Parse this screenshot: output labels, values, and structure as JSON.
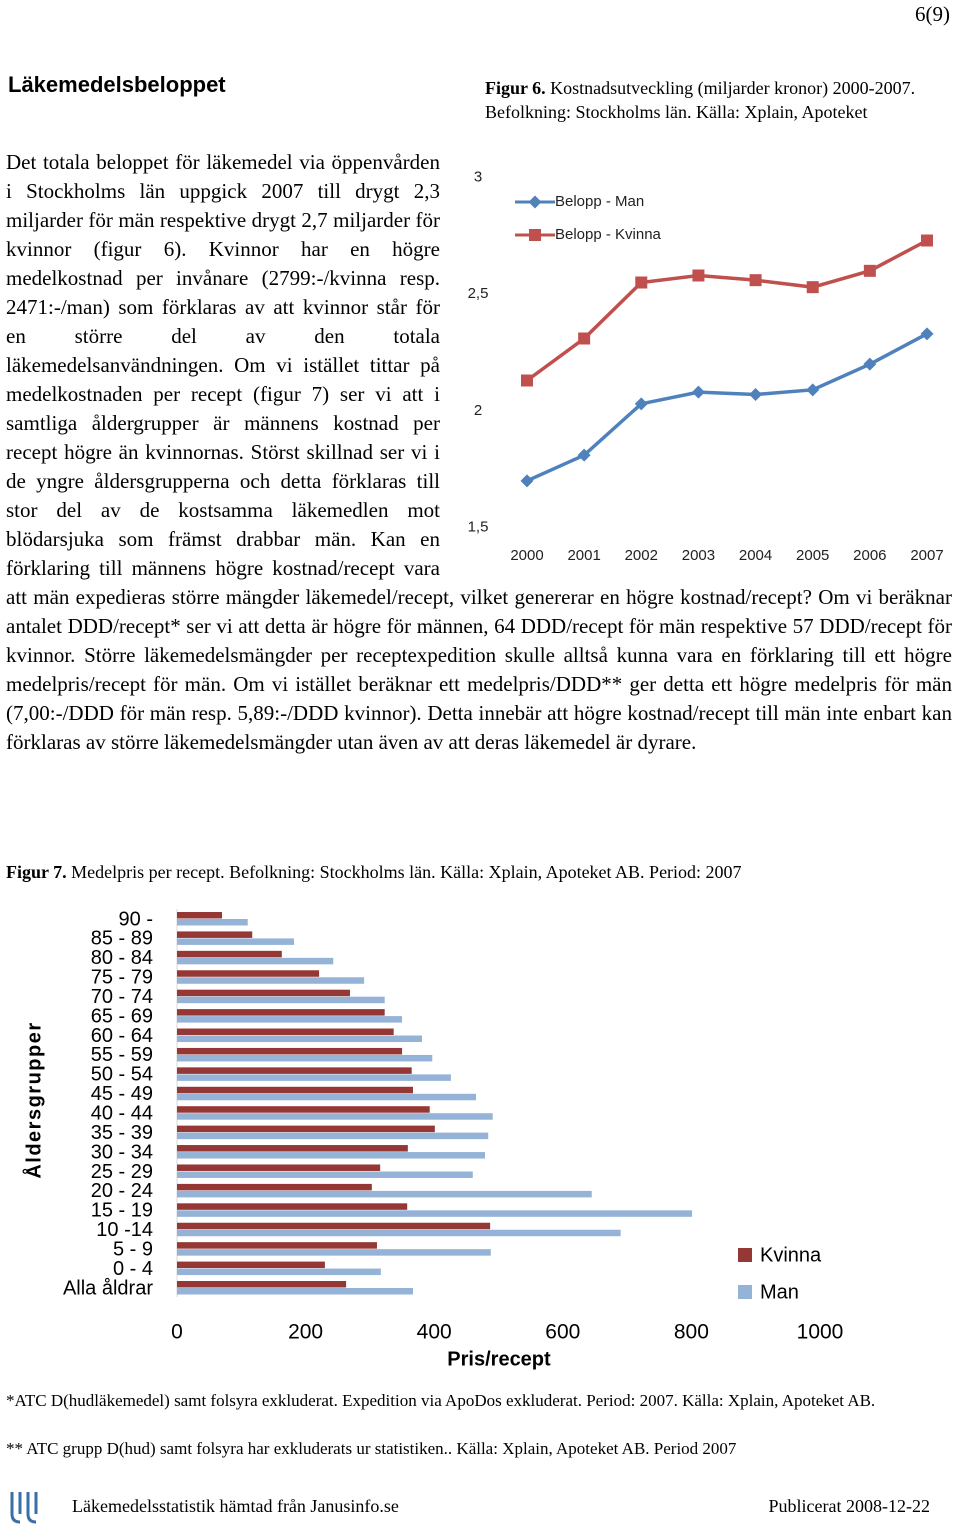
{
  "header": {
    "page_number": "6(9)"
  },
  "section_title": "Läkemedelsbeloppet",
  "body_text": "Det totala beloppet för läkemedel via öppenvården i Stockholms län uppgick 2007 till drygt 2,3 miljarder för män respektive drygt 2,7 miljarder för kvinnor (figur 6). Kvinnor har en högre medelkostnad per invånare (2799:-/kvinna resp. 2471:-/man) som förklaras av att kvinnor står för en större del av den totala läkemedelsanvändningen. Om vi istället tittar på medelkostnaden per recept (figur 7) ser vi att i samtliga åldergrupper är männens kostnad per recept högre än kvinnornas. Störst skillnad ser vi i de yngre åldersgrupperna och detta förklaras till stor del av de kostsamma läkemedlen mot blödarsjuka som främst drabbar män. Kan en förklaring till männens högre kostnad/recept vara att män expedieras större mängder läkemedel/recept, vilket genererar en högre kostnad/recept? Om vi beräknar antalet DDD/recept* ser vi att detta är högre för männen, 64 DDD/recept för män respektive 57 DDD/recept för kvinnor. Större läkemedelsmängder per receptexpedition skulle alltså kunna vara en förklaring till ett högre medelpris/recept för män. Om vi istället beräknar ett medelpris/DDD** ger detta ett högre medelpris för män (7,00:-/DDD för män resp. 5,89:-/DDD kvinnor). Detta innebär att högre kostnad/recept till män inte enbart kan förklaras av större läkemedelsmängder utan även av att deras läkemedel är dyrare.",
  "chart_data": [
    {
      "type": "line",
      "figure_label": "Figur 6.",
      "title": "Kostnadsutveckling  (miljarder kronor) 2000-2007. Befolkning: Stockholms län. Källa: Xplain, Apoteket",
      "categories": [
        "2000",
        "2001",
        "2002",
        "2003",
        "2004",
        "2005",
        "2006",
        "2007"
      ],
      "series": [
        {
          "name": "Belopp - Man",
          "color": "#4f81bd",
          "marker": "diamond",
          "values": [
            1.7,
            1.81,
            2.03,
            2.08,
            2.07,
            2.09,
            2.2,
            2.33
          ]
        },
        {
          "name": "Belopp - Kvinna",
          "color": "#c0504d",
          "marker": "square",
          "values": [
            2.13,
            2.31,
            2.55,
            2.58,
            2.56,
            2.53,
            2.6,
            2.73
          ]
        }
      ],
      "ylim": [
        1.5,
        3
      ],
      "yticks": [
        {
          "value": 1.5,
          "label": "1,5"
        },
        2,
        {
          "value": 2.5,
          "label": "2,5"
        },
        3
      ],
      "grid": false,
      "legend": "top-left"
    },
    {
      "type": "hbar",
      "figure_label": "Figur 7.",
      "title": "Medelpris per recept. Befolkning: Stockholms län. Källa: Xplain, Apoteket AB. Period: 2007",
      "x_label": "Pris/recept",
      "y_label": "Åldersgrupper",
      "categories": [
        "90 -",
        "85 - 89",
        "80 - 84",
        "75 - 79",
        "70 - 74",
        "65 - 69",
        "60 - 64",
        "55 - 59",
        "50 - 54",
        "45 - 49",
        "40 - 44",
        "35 - 39",
        "30 - 34",
        "25 - 29",
        "20 - 24",
        "15 - 19",
        "10 -14",
        "5 - 9",
        "0 - 4",
        "Alla åldrar"
      ],
      "series": [
        {
          "name": "Kvinna",
          "color": "#953735",
          "values": [
            70,
            117,
            163,
            221,
            269,
            323,
            337,
            350,
            365,
            367,
            393,
            401,
            359,
            316,
            303,
            358,
            487,
            311,
            230,
            263
          ]
        },
        {
          "name": "Man",
          "color": "#95b3d7",
          "values": [
            110,
            182,
            243,
            291,
            323,
            350,
            381,
            397,
            426,
            465,
            491,
            484,
            479,
            460,
            645,
            801,
            690,
            488,
            317,
            367
          ]
        }
      ],
      "xlim": [
        0,
        1000
      ],
      "xticks": [
        0,
        200,
        400,
        600,
        800,
        1000
      ],
      "grid": false,
      "legend": "bottom-right"
    }
  ],
  "footnotes": [
    "*ATC D(hudläkemedel) samt folsyra exkluderat. Expedition via ApoDos exkluderat. Period: 2007. Källa: Xplain, Apoteket AB.",
    "** ATC grupp D(hud) samt folsyra har exkluderats ur statistiken.. Källa: Xplain, Apoteket AB. Period 2007"
  ],
  "footer": {
    "left": "Läkemedelsstatistik hämtad från Janusinfo.se",
    "right": "Publicerat 2008-12-22"
  }
}
